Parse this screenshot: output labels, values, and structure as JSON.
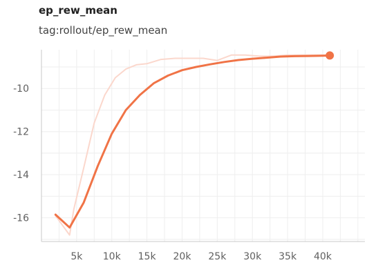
{
  "header": {
    "title": "ep_rew_mean",
    "subtitle": "tag:rollout/ep_rew_mean"
  },
  "chart_data": {
    "type": "line",
    "title": "ep_rew_mean",
    "subtitle": "tag:rollout/ep_rew_mean",
    "xlabel": "",
    "ylabel": "",
    "xlim": [
      0,
      46000
    ],
    "ylim": [
      -17.1,
      -8.2
    ],
    "x_ticks": [
      5000,
      10000,
      15000,
      20000,
      25000,
      30000,
      35000,
      40000
    ],
    "x_tick_labels": [
      "5k",
      "10k",
      "15k",
      "20k",
      "25k",
      "30k",
      "35k",
      "40k"
    ],
    "y_ticks": [
      -10,
      -12,
      -14,
      -16
    ],
    "y_tick_labels": [
      "-10",
      "-12",
      "-14",
      "-16"
    ],
    "grid": true,
    "series": [
      {
        "role": "raw",
        "color": "#fbd7cc",
        "x": [
          2000,
          4000,
          4600,
          6000,
          7500,
          9000,
          10500,
          12000,
          13500,
          15000,
          17000,
          19000,
          21000,
          23000,
          25000,
          27000,
          29000,
          31000,
          33000,
          35000,
          37000,
          39000,
          41000
        ],
        "y": [
          -15.9,
          -16.8,
          -15.6,
          -13.7,
          -11.6,
          -10.3,
          -9.5,
          -9.1,
          -8.9,
          -8.85,
          -8.65,
          -8.6,
          -8.6,
          -8.6,
          -8.7,
          -8.45,
          -8.45,
          -8.5,
          -8.5,
          -8.45,
          -8.45,
          -8.45,
          -8.45
        ]
      },
      {
        "role": "smoothed",
        "color": "#f07346",
        "x": [
          2000,
          4000,
          6000,
          8000,
          10000,
          12000,
          14000,
          16000,
          18000,
          20000,
          22000,
          24000,
          26000,
          28000,
          30000,
          32000,
          34000,
          36000,
          38000,
          40000,
          41000
        ],
        "y": [
          -15.85,
          -16.45,
          -15.3,
          -13.6,
          -12.1,
          -11.0,
          -10.3,
          -9.75,
          -9.4,
          -9.15,
          -9.0,
          -8.88,
          -8.77,
          -8.68,
          -8.62,
          -8.57,
          -8.52,
          -8.5,
          -8.49,
          -8.48,
          -8.47
        ]
      }
    ]
  }
}
